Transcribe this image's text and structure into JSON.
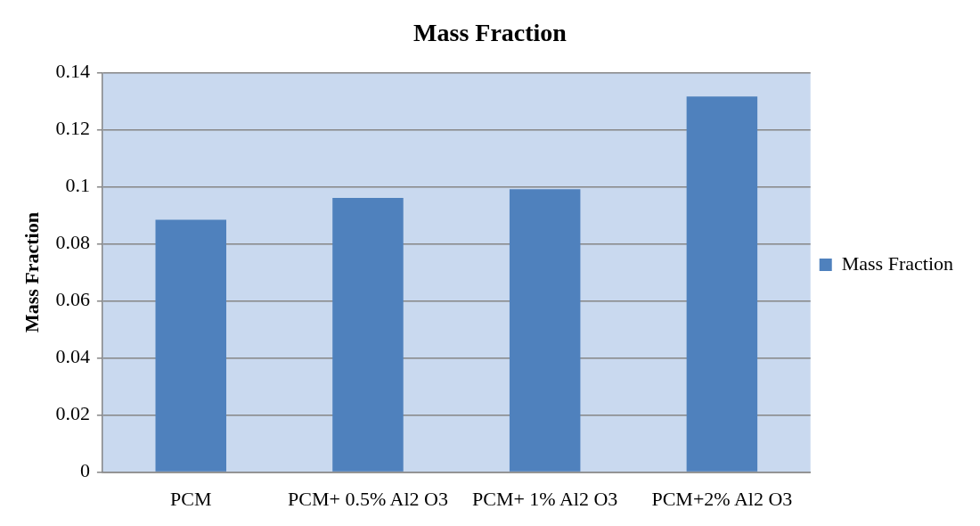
{
  "chart_data": {
    "type": "bar",
    "title": "Mass Fraction",
    "ylabel": "Mass Fraction",
    "categories": [
      "PCM",
      "PCM+ 0.5% Al2 O3",
      "PCM+ 1% Al2 O3",
      "PCM+2% Al2 O3"
    ],
    "series": [
      {
        "name": "Mass Fraction",
        "color": "#4f81bd",
        "values": [
          0.0885,
          0.0961,
          0.0992,
          0.1317
        ]
      }
    ],
    "ylim": [
      0,
      0.14
    ],
    "yticks": [
      0,
      0.02,
      0.04,
      0.06,
      0.08,
      0.1,
      0.12,
      0.14
    ],
    "grid": "y",
    "legend": "right"
  }
}
